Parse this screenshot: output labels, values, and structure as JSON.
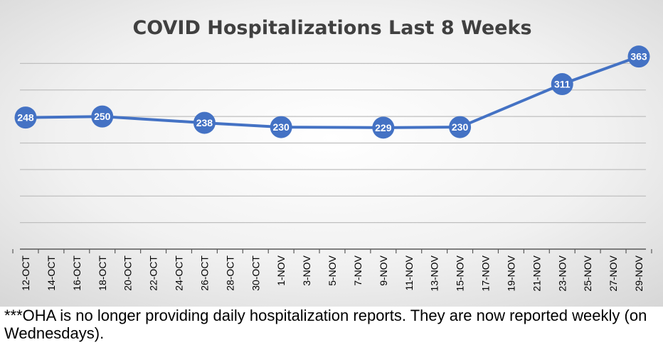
{
  "chart_data": {
    "type": "line",
    "title": "COVID Hospitalizations Last 8 Weeks",
    "xlabel": "",
    "ylabel": "",
    "x_tick_labels": [
      "12-OCT",
      "14-OCT",
      "16-OCT",
      "18-OCT",
      "20-OCT",
      "22-OCT",
      "24-OCT",
      "26-OCT",
      "28-OCT",
      "30-OCT",
      "1-NOV",
      "3-NOV",
      "5-NOV",
      "7-NOV",
      "9-NOV",
      "11-NOV",
      "13-NOV",
      "15-NOV",
      "17-NOV",
      "19-NOV",
      "21-NOV",
      "23-NOV",
      "25-NOV",
      "27-NOV",
      "29-NOV"
    ],
    "series": [
      {
        "name": "Hospitalizations",
        "points": [
          {
            "x": "12-OCT",
            "value": 248
          },
          {
            "x": "18-OCT",
            "value": 250
          },
          {
            "x": "26-OCT",
            "value": 238
          },
          {
            "x": "1-NOV",
            "value": 230
          },
          {
            "x": "9-NOV",
            "value": 229
          },
          {
            "x": "15-NOV",
            "value": 230
          },
          {
            "x": "23-NOV",
            "value": 311
          },
          {
            "x": "29-NOV",
            "value": 363
          }
        ]
      }
    ],
    "ylim": [
      0,
      400
    ],
    "y_grid_step": 50,
    "grid": true,
    "legend": "none",
    "colors": {
      "line": "#4472C4",
      "grid": "#BFBFBF",
      "title": "#404040",
      "label_text": "#FFFFFF",
      "tick_text": "#000000"
    }
  },
  "footnote": "***OHA is no longer providing daily hospitalization reports.  They are now reported weekly (on Wednesdays)."
}
